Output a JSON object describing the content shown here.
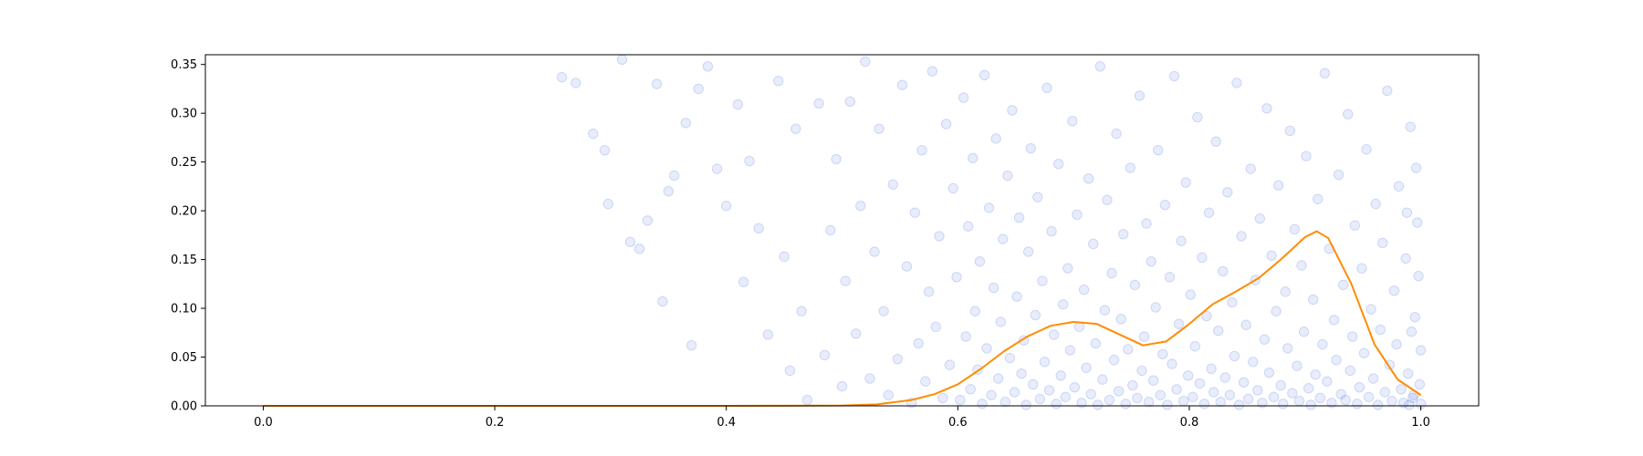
{
  "chart_data": {
    "type": "scatter",
    "title": "",
    "xlabel": "",
    "ylabel": "",
    "xlim": [
      -0.05,
      1.05
    ],
    "ylim": [
      0,
      0.36
    ],
    "x_ticks": [
      0.0,
      0.2,
      0.4,
      0.6,
      0.8,
      1.0
    ],
    "x_tick_labels": [
      "0.0",
      "0.2",
      "0.4",
      "0.6",
      "0.8",
      "1.0"
    ],
    "y_ticks": [
      0.0,
      0.05,
      0.1,
      0.15,
      0.2,
      0.25,
      0.3,
      0.35
    ],
    "y_tick_labels": [
      "0.00",
      "0.05",
      "0.10",
      "0.15",
      "0.20",
      "0.25",
      "0.30",
      "0.35"
    ],
    "grid": false,
    "legend": "none",
    "colors": {
      "points_fill": "#6f8ae6",
      "points_edge": "#4169e1",
      "curve": "#ff8c00"
    },
    "scatter_note_density": "points distributed with increasing density toward x=1.0 and toward y=0",
    "series": [
      {
        "kind": "line",
        "x": [
          0.0,
          0.1,
          0.2,
          0.3,
          0.4,
          0.45,
          0.5,
          0.53,
          0.56,
          0.58,
          0.6,
          0.62,
          0.64,
          0.66,
          0.68,
          0.7,
          0.72,
          0.74,
          0.76,
          0.78,
          0.8,
          0.82,
          0.84,
          0.86,
          0.88,
          0.9,
          0.91,
          0.92,
          0.94,
          0.96,
          0.98,
          1.0
        ],
        "y": [
          0.0,
          0.0,
          0.0,
          0.0,
          0.0,
          0.0001,
          0.0004,
          0.0015,
          0.006,
          0.012,
          0.022,
          0.038,
          0.056,
          0.071,
          0.082,
          0.086,
          0.084,
          0.073,
          0.062,
          0.066,
          0.084,
          0.104,
          0.117,
          0.131,
          0.151,
          0.173,
          0.179,
          0.172,
          0.125,
          0.063,
          0.027,
          0.011
        ]
      }
    ],
    "scatter_points": [
      [
        0.258,
        0.337
      ],
      [
        0.27,
        0.331
      ],
      [
        0.285,
        0.279
      ],
      [
        0.295,
        0.262
      ],
      [
        0.298,
        0.207
      ],
      [
        0.31,
        0.355
      ],
      [
        0.317,
        0.168
      ],
      [
        0.325,
        0.161
      ],
      [
        0.332,
        0.19
      ],
      [
        0.34,
        0.33
      ],
      [
        0.345,
        0.107
      ],
      [
        0.35,
        0.22
      ],
      [
        0.355,
        0.236
      ],
      [
        0.365,
        0.29
      ],
      [
        0.37,
        0.062
      ],
      [
        0.376,
        0.325
      ],
      [
        0.384,
        0.348
      ],
      [
        0.392,
        0.243
      ],
      [
        0.4,
        0.205
      ],
      [
        0.41,
        0.309
      ],
      [
        0.415,
        0.127
      ],
      [
        0.42,
        0.251
      ],
      [
        0.428,
        0.182
      ],
      [
        0.436,
        0.073
      ],
      [
        0.445,
        0.333
      ],
      [
        0.45,
        0.153
      ],
      [
        0.455,
        0.036
      ],
      [
        0.46,
        0.284
      ],
      [
        0.465,
        0.097
      ],
      [
        0.47,
        0.006
      ],
      [
        0.48,
        0.31
      ],
      [
        0.485,
        0.052
      ],
      [
        0.49,
        0.18
      ],
      [
        0.495,
        0.253
      ],
      [
        0.5,
        0.02
      ],
      [
        0.503,
        0.128
      ],
      [
        0.507,
        0.312
      ],
      [
        0.512,
        0.074
      ],
      [
        0.516,
        0.205
      ],
      [
        0.52,
        0.353
      ],
      [
        0.524,
        0.028
      ],
      [
        0.528,
        0.158
      ],
      [
        0.532,
        0.284
      ],
      [
        0.536,
        0.097
      ],
      [
        0.54,
        0.011
      ],
      [
        0.544,
        0.227
      ],
      [
        0.548,
        0.048
      ],
      [
        0.552,
        0.329
      ],
      [
        0.556,
        0.143
      ],
      [
        0.56,
        0.003
      ],
      [
        0.563,
        0.198
      ],
      [
        0.566,
        0.064
      ],
      [
        0.569,
        0.262
      ],
      [
        0.572,
        0.025
      ],
      [
        0.575,
        0.117
      ],
      [
        0.578,
        0.343
      ],
      [
        0.581,
        0.081
      ],
      [
        0.584,
        0.174
      ],
      [
        0.587,
        0.008
      ],
      [
        0.59,
        0.289
      ],
      [
        0.593,
        0.042
      ],
      [
        0.596,
        0.223
      ],
      [
        0.599,
        0.132
      ],
      [
        0.602,
        0.006
      ],
      [
        0.605,
        0.316
      ],
      [
        0.607,
        0.071
      ],
      [
        0.609,
        0.184
      ],
      [
        0.611,
        0.017
      ],
      [
        0.613,
        0.254
      ],
      [
        0.615,
        0.097
      ],
      [
        0.617,
        0.037
      ],
      [
        0.619,
        0.148
      ],
      [
        0.621,
        0.002
      ],
      [
        0.623,
        0.339
      ],
      [
        0.625,
        0.059
      ],
      [
        0.627,
        0.203
      ],
      [
        0.629,
        0.011
      ],
      [
        0.631,
        0.121
      ],
      [
        0.633,
        0.274
      ],
      [
        0.635,
        0.028
      ],
      [
        0.637,
        0.086
      ],
      [
        0.639,
        0.171
      ],
      [
        0.641,
        0.004
      ],
      [
        0.643,
        0.236
      ],
      [
        0.645,
        0.049
      ],
      [
        0.647,
        0.303
      ],
      [
        0.649,
        0.014
      ],
      [
        0.651,
        0.112
      ],
      [
        0.653,
        0.193
      ],
      [
        0.655,
        0.033
      ],
      [
        0.657,
        0.067
      ],
      [
        0.659,
        0.001
      ],
      [
        0.661,
        0.158
      ],
      [
        0.663,
        0.264
      ],
      [
        0.665,
        0.022
      ],
      [
        0.667,
        0.093
      ],
      [
        0.669,
        0.214
      ],
      [
        0.671,
        0.007
      ],
      [
        0.673,
        0.128
      ],
      [
        0.675,
        0.045
      ],
      [
        0.677,
        0.326
      ],
      [
        0.679,
        0.016
      ],
      [
        0.681,
        0.179
      ],
      [
        0.683,
        0.073
      ],
      [
        0.685,
        0.002
      ],
      [
        0.687,
        0.248
      ],
      [
        0.689,
        0.031
      ],
      [
        0.691,
        0.104
      ],
      [
        0.693,
        0.009
      ],
      [
        0.695,
        0.141
      ],
      [
        0.697,
        0.057
      ],
      [
        0.699,
        0.292
      ],
      [
        0.701,
        0.019
      ],
      [
        0.703,
        0.196
      ],
      [
        0.705,
        0.081
      ],
      [
        0.707,
        0.003
      ],
      [
        0.709,
        0.119
      ],
      [
        0.711,
        0.039
      ],
      [
        0.713,
        0.233
      ],
      [
        0.715,
        0.012
      ],
      [
        0.717,
        0.166
      ],
      [
        0.719,
        0.064
      ],
      [
        0.721,
        0.001
      ],
      [
        0.723,
        0.348
      ],
      [
        0.725,
        0.027
      ],
      [
        0.727,
        0.098
      ],
      [
        0.729,
        0.211
      ],
      [
        0.731,
        0.006
      ],
      [
        0.733,
        0.136
      ],
      [
        0.735,
        0.047
      ],
      [
        0.737,
        0.279
      ],
      [
        0.739,
        0.015
      ],
      [
        0.741,
        0.089
      ],
      [
        0.743,
        0.176
      ],
      [
        0.745,
        0.002
      ],
      [
        0.747,
        0.058
      ],
      [
        0.749,
        0.244
      ],
      [
        0.751,
        0.021
      ],
      [
        0.753,
        0.124
      ],
      [
        0.755,
        0.008
      ],
      [
        0.757,
        0.318
      ],
      [
        0.759,
        0.036
      ],
      [
        0.761,
        0.071
      ],
      [
        0.763,
        0.187
      ],
      [
        0.765,
        0.004
      ],
      [
        0.767,
        0.148
      ],
      [
        0.769,
        0.026
      ],
      [
        0.771,
        0.101
      ],
      [
        0.773,
        0.262
      ],
      [
        0.775,
        0.011
      ],
      [
        0.777,
        0.053
      ],
      [
        0.779,
        0.206
      ],
      [
        0.781,
        0.001
      ],
      [
        0.783,
        0.132
      ],
      [
        0.785,
        0.043
      ],
      [
        0.787,
        0.338
      ],
      [
        0.789,
        0.017
      ],
      [
        0.791,
        0.084
      ],
      [
        0.793,
        0.169
      ],
      [
        0.795,
        0.005
      ],
      [
        0.797,
        0.229
      ],
      [
        0.799,
        0.031
      ],
      [
        0.801,
        0.114
      ],
      [
        0.803,
        0.009
      ],
      [
        0.805,
        0.061
      ],
      [
        0.807,
        0.296
      ],
      [
        0.809,
        0.023
      ],
      [
        0.811,
        0.152
      ],
      [
        0.813,
        0.002
      ],
      [
        0.815,
        0.092
      ],
      [
        0.817,
        0.198
      ],
      [
        0.819,
        0.038
      ],
      [
        0.821,
        0.014
      ],
      [
        0.823,
        0.271
      ],
      [
        0.825,
        0.077
      ],
      [
        0.827,
        0.004
      ],
      [
        0.829,
        0.138
      ],
      [
        0.831,
        0.029
      ],
      [
        0.833,
        0.219
      ],
      [
        0.835,
        0.011
      ],
      [
        0.837,
        0.106
      ],
      [
        0.839,
        0.051
      ],
      [
        0.841,
        0.331
      ],
      [
        0.843,
        0.001
      ],
      [
        0.845,
        0.174
      ],
      [
        0.847,
        0.024
      ],
      [
        0.849,
        0.083
      ],
      [
        0.851,
        0.007
      ],
      [
        0.853,
        0.243
      ],
      [
        0.855,
        0.045
      ],
      [
        0.857,
        0.129
      ],
      [
        0.859,
        0.016
      ],
      [
        0.861,
        0.192
      ],
      [
        0.863,
        0.003
      ],
      [
        0.865,
        0.068
      ],
      [
        0.867,
        0.305
      ],
      [
        0.869,
        0.034
      ],
      [
        0.871,
        0.154
      ],
      [
        0.873,
        0.009
      ],
      [
        0.875,
        0.097
      ],
      [
        0.877,
        0.226
      ],
      [
        0.879,
        0.021
      ],
      [
        0.881,
        0.002
      ],
      [
        0.883,
        0.117
      ],
      [
        0.885,
        0.059
      ],
      [
        0.887,
        0.282
      ],
      [
        0.889,
        0.013
      ],
      [
        0.891,
        0.181
      ],
      [
        0.893,
        0.041
      ],
      [
        0.895,
        0.005
      ],
      [
        0.897,
        0.144
      ],
      [
        0.899,
        0.076
      ],
      [
        0.901,
        0.256
      ],
      [
        0.903,
        0.018
      ],
      [
        0.905,
        0.001
      ],
      [
        0.907,
        0.109
      ],
      [
        0.909,
        0.032
      ],
      [
        0.911,
        0.212
      ],
      [
        0.913,
        0.008
      ],
      [
        0.915,
        0.063
      ],
      [
        0.917,
        0.341
      ],
      [
        0.919,
        0.025
      ],
      [
        0.921,
        0.161
      ],
      [
        0.923,
        0.003
      ],
      [
        0.925,
        0.088
      ],
      [
        0.927,
        0.047
      ],
      [
        0.929,
        0.237
      ],
      [
        0.931,
        0.012
      ],
      [
        0.933,
        0.124
      ],
      [
        0.935,
        0.006
      ],
      [
        0.937,
        0.299
      ],
      [
        0.939,
        0.036
      ],
      [
        0.941,
        0.071
      ],
      [
        0.943,
        0.185
      ],
      [
        0.945,
        0.002
      ],
      [
        0.947,
        0.019
      ],
      [
        0.949,
        0.141
      ],
      [
        0.951,
        0.054
      ],
      [
        0.953,
        0.263
      ],
      [
        0.955,
        0.009
      ],
      [
        0.957,
        0.099
      ],
      [
        0.959,
        0.028
      ],
      [
        0.961,
        0.207
      ],
      [
        0.963,
        0.001
      ],
      [
        0.965,
        0.078
      ],
      [
        0.967,
        0.167
      ],
      [
        0.969,
        0.014
      ],
      [
        0.971,
        0.323
      ],
      [
        0.973,
        0.042
      ],
      [
        0.975,
        0.005
      ],
      [
        0.977,
        0.118
      ],
      [
        0.979,
        0.063
      ],
      [
        0.981,
        0.225
      ],
      [
        0.983,
        0.017
      ],
      [
        0.985,
        0.003
      ],
      [
        0.987,
        0.151
      ],
      [
        0.989,
        0.033
      ],
      [
        0.991,
        0.286
      ],
      [
        0.993,
        0.008
      ],
      [
        0.995,
        0.091
      ],
      [
        0.997,
        0.188
      ],
      [
        0.999,
        0.022
      ],
      [
        1.0,
        0.002
      ],
      [
        1.0,
        0.057
      ],
      [
        0.998,
        0.133
      ],
      [
        0.996,
        0.244
      ],
      [
        0.994,
        0.011
      ],
      [
        0.992,
        0.076
      ],
      [
        0.99,
        0.001
      ],
      [
        0.988,
        0.198
      ]
    ]
  }
}
